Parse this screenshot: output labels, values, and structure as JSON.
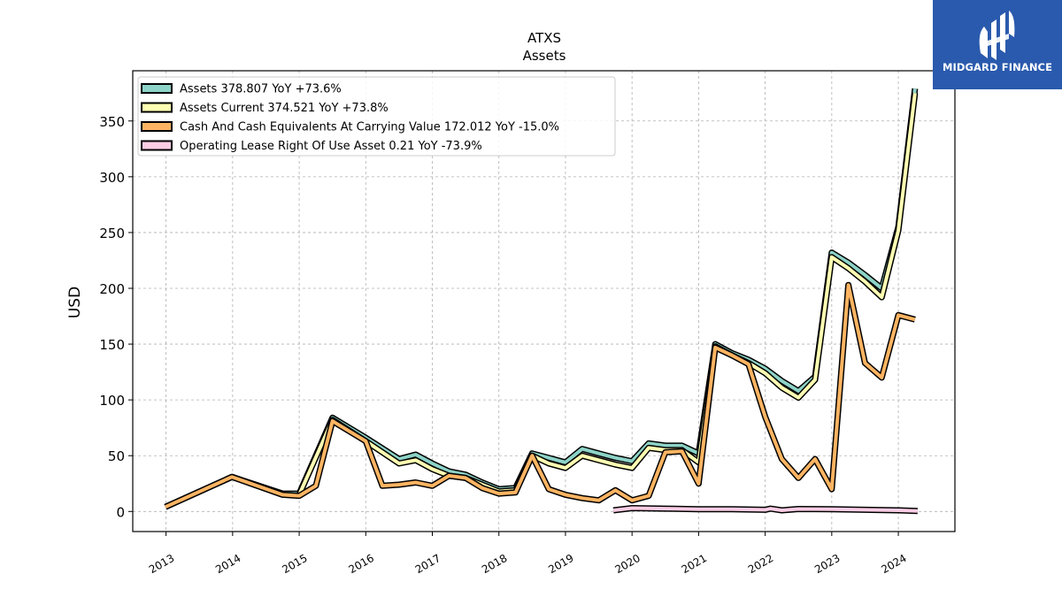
{
  "chart_data": {
    "type": "line",
    "title": "ATXS",
    "subtitle": "Assets",
    "ylabel": "USD",
    "xlabel": "",
    "ylim": [
      -18,
      395
    ],
    "xlim": [
      2012.5,
      2024.85
    ],
    "yticks": [
      0,
      50,
      100,
      150,
      200,
      250,
      300,
      350
    ],
    "xticks": [
      "2013",
      "2014",
      "2015",
      "2016",
      "2017",
      "2018",
      "2019",
      "2020",
      "2021",
      "2022",
      "2023",
      "2024"
    ],
    "grid": true,
    "legend_position": "top-left",
    "series": [
      {
        "name": "Assets",
        "legend": "Assets  378.807 YoY +73.6%",
        "color": "#8dd3c7",
        "points": [
          [
            2012.99,
            4
          ],
          [
            2013.99,
            31
          ],
          [
            2014.75,
            16
          ],
          [
            2015.0,
            16
          ],
          [
            2015.5,
            84
          ],
          [
            2016.0,
            66
          ],
          [
            2016.5,
            47
          ],
          [
            2016.75,
            51
          ],
          [
            2017.0,
            43
          ],
          [
            2017.25,
            36
          ],
          [
            2017.5,
            33
          ],
          [
            2017.75,
            26
          ],
          [
            2018.0,
            20
          ],
          [
            2018.25,
            21
          ],
          [
            2018.5,
            52
          ],
          [
            2018.75,
            48
          ],
          [
            2019.0,
            44
          ],
          [
            2019.25,
            56
          ],
          [
            2019.5,
            52
          ],
          [
            2019.75,
            48
          ],
          [
            2020.0,
            45
          ],
          [
            2020.25,
            61
          ],
          [
            2020.5,
            59
          ],
          [
            2020.75,
            59
          ],
          [
            2021.0,
            52
          ],
          [
            2021.25,
            150
          ],
          [
            2021.5,
            142
          ],
          [
            2021.75,
            136
          ],
          [
            2022.0,
            128
          ],
          [
            2022.25,
            117
          ],
          [
            2022.5,
            108
          ],
          [
            2022.75,
            121
          ],
          [
            2023.0,
            232
          ],
          [
            2023.25,
            223
          ],
          [
            2023.5,
            212
          ],
          [
            2023.75,
            200
          ],
          [
            2024.0,
            255
          ],
          [
            2024.25,
            379
          ]
        ]
      },
      {
        "name": "Assets Current",
        "legend": "Assets Current  374.521 YoY +73.8%",
        "color": "#ffffb3",
        "points": [
          [
            2015.0,
            15
          ],
          [
            2015.5,
            82
          ],
          [
            2016.0,
            63
          ],
          [
            2016.5,
            43
          ],
          [
            2016.75,
            46
          ],
          [
            2017.0,
            38
          ],
          [
            2017.25,
            32
          ],
          [
            2017.5,
            30
          ],
          [
            2017.75,
            24
          ],
          [
            2018.0,
            18
          ],
          [
            2018.25,
            19
          ],
          [
            2018.5,
            50
          ],
          [
            2018.75,
            43
          ],
          [
            2019.0,
            39
          ],
          [
            2019.25,
            50
          ],
          [
            2019.5,
            46
          ],
          [
            2019.75,
            42
          ],
          [
            2020.0,
            39
          ],
          [
            2020.25,
            57
          ],
          [
            2020.5,
            55
          ],
          [
            2020.75,
            55
          ],
          [
            2021.0,
            44
          ],
          [
            2021.25,
            148
          ],
          [
            2021.5,
            140
          ],
          [
            2021.75,
            133
          ],
          [
            2022.0,
            124
          ],
          [
            2022.25,
            111
          ],
          [
            2022.5,
            102
          ],
          [
            2022.75,
            118
          ],
          [
            2023.0,
            228
          ],
          [
            2023.25,
            218
          ],
          [
            2023.5,
            206
          ],
          [
            2023.75,
            192
          ],
          [
            2024.0,
            252
          ],
          [
            2024.25,
            375
          ]
        ]
      },
      {
        "name": "Cash And Cash Equivalents At Carrying Value",
        "legend": "Cash And Cash Equivalents At Carrying Value  172.012 YoY -15.0%",
        "color": "#fdb462",
        "points": [
          [
            2012.99,
            4
          ],
          [
            2013.99,
            31
          ],
          [
            2014.75,
            15
          ],
          [
            2015.0,
            14
          ],
          [
            2015.25,
            23
          ],
          [
            2015.5,
            81
          ],
          [
            2016.0,
            63
          ],
          [
            2016.25,
            23
          ],
          [
            2016.5,
            24
          ],
          [
            2016.75,
            26
          ],
          [
            2017.0,
            23
          ],
          [
            2017.25,
            32
          ],
          [
            2017.5,
            30
          ],
          [
            2017.75,
            21
          ],
          [
            2018.0,
            16
          ],
          [
            2018.25,
            17
          ],
          [
            2018.5,
            50
          ],
          [
            2018.75,
            20
          ],
          [
            2019.0,
            15
          ],
          [
            2019.25,
            12
          ],
          [
            2019.5,
            10
          ],
          [
            2019.75,
            19
          ],
          [
            2020.0,
            10
          ],
          [
            2020.25,
            14
          ],
          [
            2020.5,
            53
          ],
          [
            2020.75,
            54
          ],
          [
            2021.0,
            25
          ],
          [
            2021.25,
            147
          ],
          [
            2021.5,
            140
          ],
          [
            2021.75,
            132
          ],
          [
            2022.0,
            85
          ],
          [
            2022.25,
            47
          ],
          [
            2022.5,
            30
          ],
          [
            2022.75,
            47
          ],
          [
            2023.0,
            20
          ],
          [
            2023.25,
            203
          ],
          [
            2023.5,
            133
          ],
          [
            2023.75,
            120
          ],
          [
            2024.0,
            176
          ],
          [
            2024.25,
            172
          ]
        ]
      },
      {
        "name": "Operating Lease Right Of Use Asset",
        "legend": "Operating Lease Right Of Use Asset  0.21 YoY -73.9%",
        "color": "#fccde5",
        "points": [
          [
            2019.72,
            1
          ],
          [
            2020.0,
            3
          ],
          [
            2020.5,
            2.5
          ],
          [
            2021.0,
            2
          ],
          [
            2021.5,
            2
          ],
          [
            2022.0,
            1.5
          ],
          [
            2022.08,
            2.5
          ],
          [
            2022.25,
            1
          ],
          [
            2022.5,
            2.2
          ],
          [
            2023.0,
            2
          ],
          [
            2023.5,
            1.5
          ],
          [
            2024.0,
            1
          ],
          [
            2024.29,
            0.5
          ]
        ]
      }
    ]
  },
  "logo": {
    "text": "MIDGARD FINANCE",
    "background": "#2a5aad"
  }
}
